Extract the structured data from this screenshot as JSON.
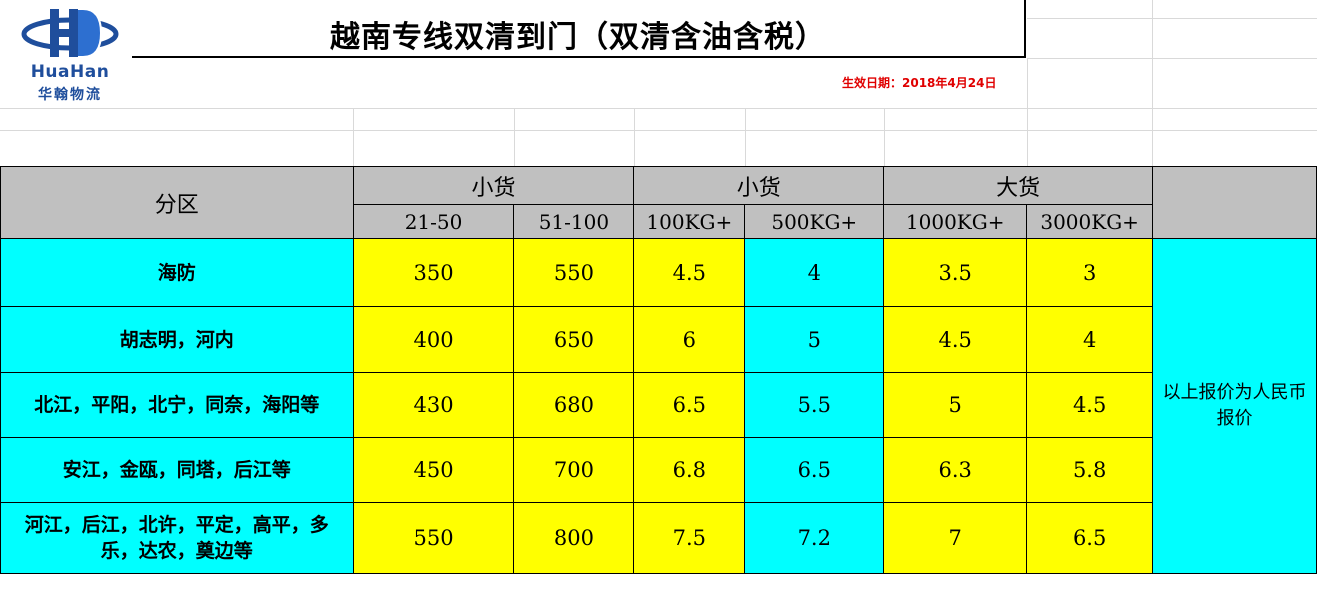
{
  "header": {
    "title": "越南专线双清到门（双清含油含税）",
    "logo_name": "HuaHan",
    "logo_cn": "华翰物流",
    "effective_date": "生效日期：2018年4月24日"
  },
  "colors": {
    "header_bg": "#c0c0c0",
    "cyan": "#00ffff",
    "yellow": "#ffff00",
    "date_red": "#e00000",
    "logo_blue": "#1f4e9c"
  },
  "table": {
    "region_header": "分区",
    "groups": [
      "小货",
      "小货",
      "大货"
    ],
    "weights": [
      "21-50",
      "51-100",
      "100KG+",
      "500KG+",
      "1000KG+",
      "3000KG+"
    ],
    "rows": [
      {
        "region": "海防",
        "values": [
          "350",
          "550",
          "4.5",
          "4",
          "3.5",
          "3"
        ]
      },
      {
        "region": "胡志明，河内",
        "values": [
          "400",
          "650",
          "6",
          "5",
          "4.5",
          "4"
        ]
      },
      {
        "region": "北江，平阳，北宁，同奈，海阳等",
        "values": [
          "430",
          "680",
          "6.5",
          "5.5",
          "5",
          "4.5"
        ]
      },
      {
        "region": "安江，金瓯，同塔，后江等",
        "values": [
          "450",
          "700",
          "6.8",
          "6.5",
          "6.3",
          "5.8"
        ]
      },
      {
        "region": "河江，后江，北许，平定，高平，多乐，达农，奠边等",
        "values": [
          "550",
          "800",
          "7.5",
          "7.2",
          "7",
          "6.5"
        ]
      }
    ],
    "note": "以上报价为人民币报价"
  }
}
